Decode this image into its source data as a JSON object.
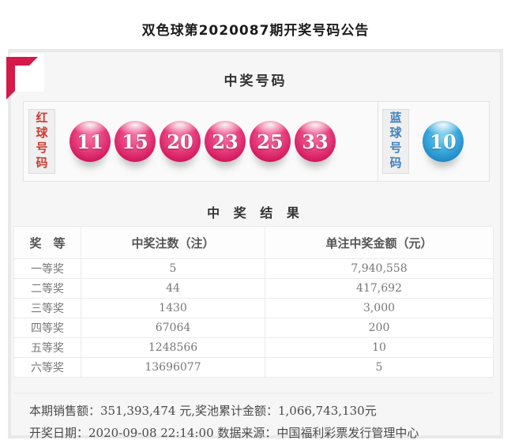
{
  "page": {
    "title": "双色球第2020087期开奖号码公告"
  },
  "winning_numbers": {
    "section_title": "中奖号码",
    "red_label": "红球号码",
    "blue_label": "蓝球号码",
    "red_balls": [
      "11",
      "15",
      "20",
      "23",
      "25",
      "33"
    ],
    "blue_balls": [
      "10"
    ],
    "colors": {
      "red_ball": "#d0155a",
      "blue_ball": "#1d87c2",
      "red_label_text": "#cc3b33",
      "blue_label_text": "#4181bd",
      "corner_ribbon": "#d6184b"
    }
  },
  "results": {
    "section_title": "中 奖 结 果",
    "table": {
      "headers": [
        "奖　等",
        "中奖注数（注）",
        "单注中奖金额（元）"
      ],
      "rows": [
        {
          "level": "一等奖",
          "count": "5",
          "amount": "7,940,558"
        },
        {
          "level": "二等奖",
          "count": "44",
          "amount": "417,692"
        },
        {
          "level": "三等奖",
          "count": "1430",
          "amount": "3,000"
        },
        {
          "level": "四等奖",
          "count": "67064",
          "amount": "200"
        },
        {
          "level": "五等奖",
          "count": "1248566",
          "amount": "10"
        },
        {
          "level": "六等奖",
          "count": "13696077",
          "amount": "5"
        }
      ]
    }
  },
  "footer": {
    "sales_line": "本期销售额：351,393,474 元,奖池累计金额：1,066,743,130元",
    "date_line": "开奖日期：2020-09-08 22:14:00 数据来源：中国福利彩票发行管理中心"
  }
}
